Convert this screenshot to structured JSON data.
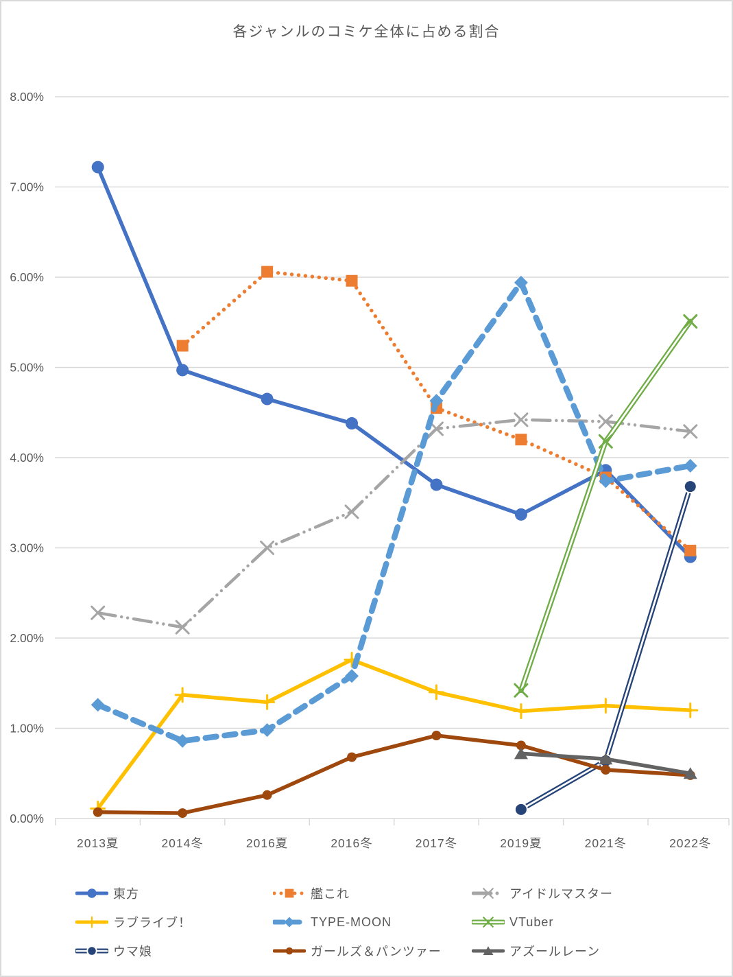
{
  "frame": {
    "background": "#FFFFFF",
    "border_color": "#D9D9D9"
  },
  "text_colors": {
    "title": "#595959",
    "axis": "#595959",
    "legend": "#595959"
  },
  "gridline_color": "#D9D9D9",
  "chart_data": {
    "type": "line",
    "title": "各ジャンルのコミケ全体に占める割合",
    "xlabel": "",
    "ylabel": "",
    "grid": true,
    "legend_position": "bottom",
    "categories": [
      "2013夏",
      "2014冬",
      "2016夏",
      "2016冬",
      "2017冬",
      "2019夏",
      "2021冬",
      "2022冬"
    ],
    "y_axis": {
      "min": 0,
      "max": 8,
      "step": 1,
      "unit": "%",
      "tick_labels": [
        "0.00%",
        "1.00%",
        "2.00%",
        "3.00%",
        "4.00%",
        "5.00%",
        "6.00%",
        "7.00%",
        "8.00%"
      ]
    },
    "series": [
      {
        "id": "touhou",
        "name": "東方",
        "color": "#4472C4",
        "line_style": "solid",
        "marker": "circle",
        "values": [
          7.22,
          4.97,
          4.65,
          4.38,
          3.7,
          3.37,
          3.86,
          2.9
        ]
      },
      {
        "id": "kancolle",
        "name": "艦これ",
        "color": "#ED7D31",
        "line_style": "dotted",
        "marker": "square",
        "values": [
          null,
          5.24,
          6.06,
          5.96,
          4.55,
          4.2,
          3.78,
          2.97
        ]
      },
      {
        "id": "idolmaster",
        "name": "アイドルマスター",
        "color": "#A5A5A5",
        "line_style": "dash-dot-dot",
        "marker": "x",
        "values": [
          2.28,
          2.12,
          3.0,
          3.4,
          4.32,
          4.42,
          4.4,
          4.29
        ]
      },
      {
        "id": "lovelive",
        "name": "ラブライブ！",
        "color": "#FFC000",
        "line_style": "solid",
        "marker": "plus",
        "values": [
          0.11,
          1.37,
          1.29,
          1.76,
          1.4,
          1.19,
          1.25,
          1.2
        ]
      },
      {
        "id": "type-moon",
        "name": "TYPE-MOON",
        "color": "#5B9BD5",
        "line_style": "dashed",
        "marker": "diamond",
        "values": [
          1.26,
          0.86,
          0.98,
          1.58,
          4.63,
          5.94,
          3.74,
          3.91
        ]
      },
      {
        "id": "vtuber",
        "name": "VTuber",
        "color": "#70AD47",
        "line_style": "double",
        "marker": "x",
        "values": [
          null,
          null,
          null,
          null,
          null,
          1.42,
          4.18,
          5.51
        ]
      },
      {
        "id": "umamusume",
        "name": "ウマ娘",
        "color": "#264478",
        "line_style": "double",
        "marker": "circle",
        "values": [
          null,
          null,
          null,
          null,
          null,
          0.1,
          0.64,
          3.68
        ]
      },
      {
        "id": "garupan",
        "name": "ガールズ＆パンツァー",
        "color": "#9E480E",
        "line_style": "solid",
        "marker": "dot",
        "values": [
          0.07,
          0.06,
          0.26,
          0.68,
          0.92,
          0.81,
          0.54,
          0.48
        ]
      },
      {
        "id": "azur-lane",
        "name": "アズールレーン",
        "color": "#636363",
        "line_style": "solid",
        "marker": "triangle",
        "values": [
          null,
          null,
          null,
          null,
          null,
          0.72,
          0.66,
          0.5
        ]
      }
    ]
  }
}
